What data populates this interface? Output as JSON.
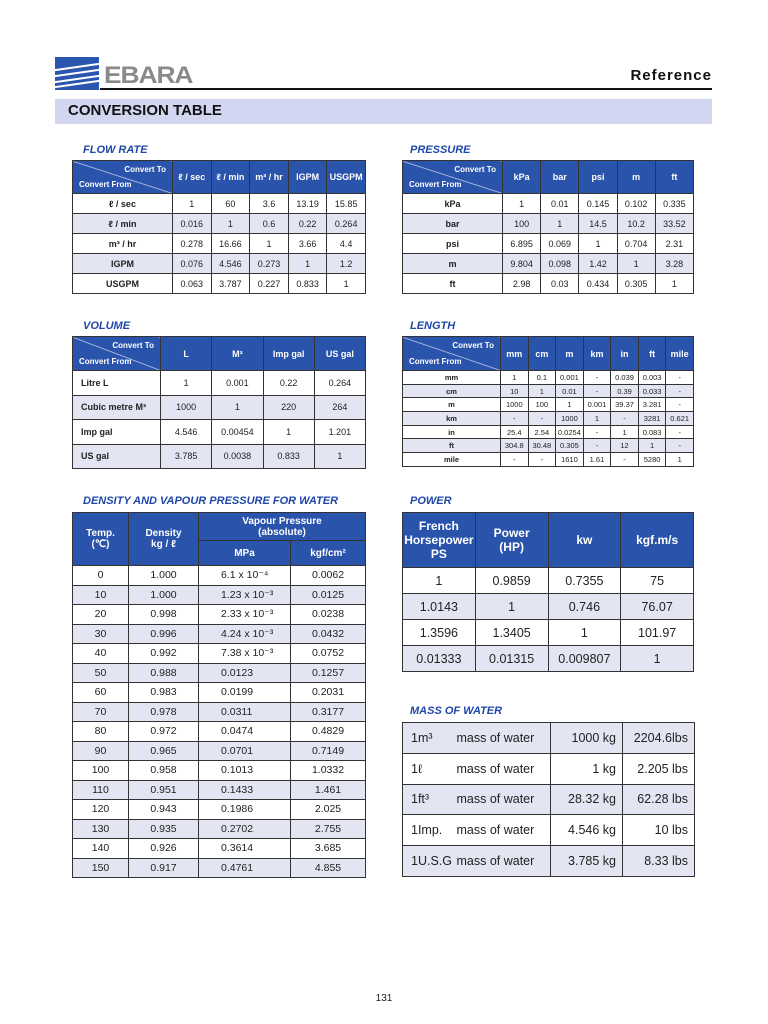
{
  "header": {
    "brand": "EBARA",
    "section": "Reference",
    "title": "CONVERSION TABLE"
  },
  "corner": {
    "to": "Convert To",
    "from": "Convert From"
  },
  "flow_rate": {
    "title": "FLOW RATE",
    "columns": [
      "ℓ / sec",
      "ℓ / min",
      "m³ / hr",
      "IGPM",
      "USGPM"
    ],
    "rows": [
      [
        "ℓ / sec",
        "1",
        "60",
        "3.6",
        "13.19",
        "15.85"
      ],
      [
        "ℓ / min",
        "0.016",
        "1",
        "0.6",
        "0.22",
        "0.264"
      ],
      [
        "m³ / hr",
        "0.278",
        "16.66",
        "1",
        "3.66",
        "4.4"
      ],
      [
        "IGPM",
        "0.076",
        "4.546",
        "0.273",
        "1",
        "1.2"
      ],
      [
        "USGPM",
        "0.063",
        "3.787",
        "0.227",
        "0.833",
        "1"
      ]
    ]
  },
  "pressure": {
    "title": "PRESSURE",
    "columns": [
      "kPa",
      "bar",
      "psi",
      "m",
      "ft"
    ],
    "rows": [
      [
        "kPa",
        "1",
        "0.01",
        "0.145",
        "0.102",
        "0.335"
      ],
      [
        "bar",
        "100",
        "1",
        "14.5",
        "10.2",
        "33.52"
      ],
      [
        "psi",
        "6.895",
        "0.069",
        "1",
        "0.704",
        "2.31"
      ],
      [
        "m",
        "9.804",
        "0.098",
        "1.42",
        "1",
        "3.28"
      ],
      [
        "ft",
        "2.98",
        "0.03",
        "0.434",
        "0.305",
        "1"
      ]
    ]
  },
  "volume": {
    "title": "VOLUME",
    "columns": [
      "L",
      "M³",
      "Imp gal",
      "US gal"
    ],
    "rows": [
      [
        "Litre   L",
        "1",
        "0.001",
        "0.22",
        "0.264"
      ],
      [
        "Cubic metre   M³",
        "1000",
        "1",
        "220",
        "264"
      ],
      [
        "Imp gal",
        "4.546",
        "0.00454",
        "1",
        "1.201"
      ],
      [
        "US gal",
        "3.785",
        "0.0038",
        "0.833",
        "1"
      ]
    ]
  },
  "length": {
    "title": "LENGTH",
    "columns": [
      "mm",
      "cm",
      "m",
      "km",
      "in",
      "ft",
      "mile"
    ],
    "rows": [
      [
        "mm",
        "1",
        "0.1",
        "0.001",
        "-",
        "0.039",
        "0.003",
        "-"
      ],
      [
        "cm",
        "10",
        "1",
        "0.01",
        "-",
        "0.39",
        "0.033",
        "-"
      ],
      [
        "m",
        "1000",
        "100",
        "1",
        "0.001",
        "39.37",
        "3.281",
        "-"
      ],
      [
        "km",
        "-",
        "-",
        "1000",
        "1",
        "-",
        "3281",
        "0.621"
      ],
      [
        "in",
        "25.4",
        "2.54",
        "0.0254",
        "-",
        "1",
        "0.083",
        "-"
      ],
      [
        "ft",
        "304.8",
        "30.48",
        "0.305",
        "-",
        "12",
        "1",
        "-"
      ],
      [
        "mile",
        "-",
        "-",
        "1610",
        "1.61",
        "-",
        "5280",
        "1"
      ]
    ]
  },
  "density": {
    "title": "DENSITY AND VAPOUR PRESSURE FOR WATER",
    "headers": {
      "temp": "Temp.\n(℃)",
      "density": "Density\nkg / ℓ",
      "vapour": "Vapour Pressure\n(absolute)",
      "mpa": "MPa",
      "kgf": "kgf/cm²"
    },
    "rows": [
      [
        "0",
        "1.000",
        "6.1 x 10⁻⁴",
        "0.0062"
      ],
      [
        "10",
        "1.000",
        "1.23 x 10⁻³",
        "0.0125"
      ],
      [
        "20",
        "0.998",
        "2.33 x 10⁻³",
        "0.0238"
      ],
      [
        "30",
        "0.996",
        "4.24 x 10⁻³",
        "0.0432"
      ],
      [
        "40",
        "0.992",
        "7.38 x 10⁻³",
        "0.0752"
      ],
      [
        "50",
        "0.988",
        "0.0123",
        "0.1257"
      ],
      [
        "60",
        "0.983",
        "0.0199",
        "0.2031"
      ],
      [
        "70",
        "0.978",
        "0.0311",
        "0.3177"
      ],
      [
        "80",
        "0.972",
        "0.0474",
        "0.4829"
      ],
      [
        "90",
        "0.965",
        "0.0701",
        "0.7149"
      ],
      [
        "100",
        "0.958",
        "0.1013",
        "1.0332"
      ],
      [
        "110",
        "0.951",
        "0.1433",
        "1.461"
      ],
      [
        "120",
        "0.943",
        "0.1986",
        "2.025"
      ],
      [
        "130",
        "0.935",
        "0.2702",
        "2.755"
      ],
      [
        "140",
        "0.926",
        "0.3614",
        "3.685"
      ],
      [
        "150",
        "0.917",
        "0.4761",
        "4.855"
      ]
    ]
  },
  "power": {
    "title": "POWER",
    "columns": [
      "French\nHorsepower\nPS",
      "Power\n(HP)",
      "kw",
      "kgf.m/s"
    ],
    "rows": [
      [
        "1",
        "0.9859",
        "0.7355",
        "75"
      ],
      [
        "1.0143",
        "1",
        "0.746",
        "76.07"
      ],
      [
        "1.3596",
        "1.3405",
        "1",
        "101.97"
      ],
      [
        "0.01333",
        "0.01315",
        "0.009807",
        "1"
      ]
    ]
  },
  "mass": {
    "title": "MASS OF WATER",
    "rows": [
      [
        "1m³",
        "mass of water",
        "1000 kg",
        "2204.6lbs"
      ],
      [
        "1ℓ",
        "mass of water",
        "1 kg",
        "2.205  lbs"
      ],
      [
        "1ft³",
        "mass of water",
        "28.32 kg",
        "62.28  lbs"
      ],
      [
        "1Imp.",
        "mass of water",
        "4.546 kg",
        "10  lbs"
      ],
      [
        "1U.S.G",
        "mass of water",
        "3.785 kg",
        "8.33  lbs"
      ]
    ]
  },
  "page_number": "131",
  "colors": {
    "header_blue": "#2a53ac",
    "title_blue": "#1f47a8",
    "band": "#d3d6f0",
    "alt_row": "#e3e5f3"
  }
}
